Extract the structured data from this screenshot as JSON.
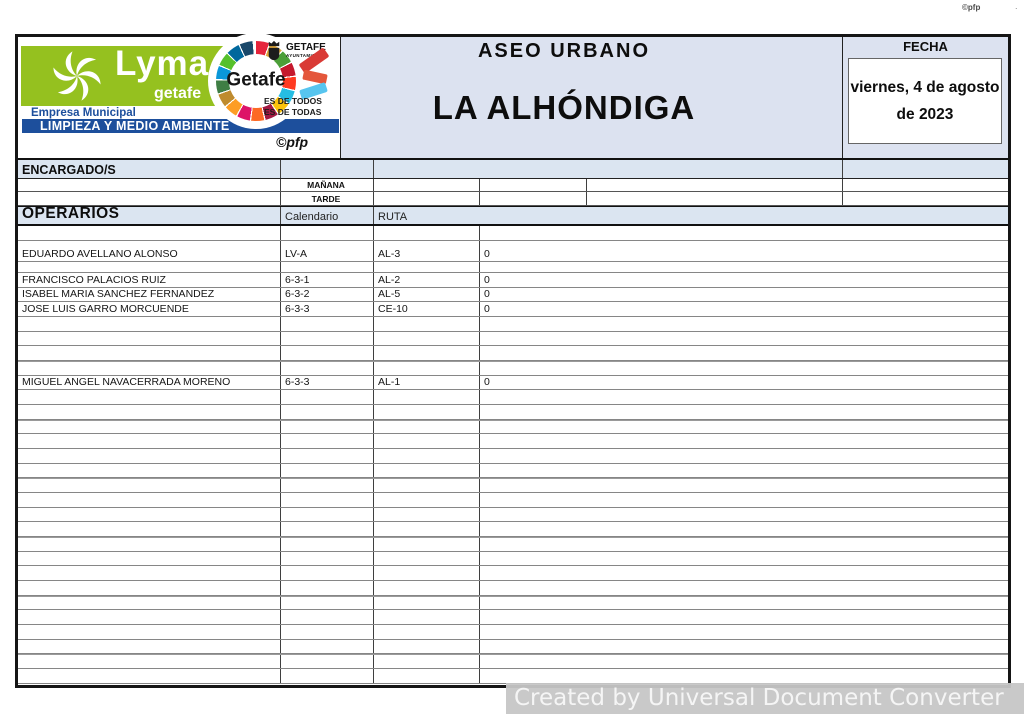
{
  "page": {
    "watermark_top": "©pfp",
    "converter_note": "Created by Universal Document Converter"
  },
  "colors": {
    "brand_green": "#95c11f",
    "brand_blue": "#1d4f9c",
    "header_bg": "#dce2f0",
    "section_bg": "#dbe5f1"
  },
  "branding": {
    "lyma": "Lyma",
    "lyma_sub": "getafe",
    "circle_word": "Getafe",
    "crest_title": "GETAFE",
    "crest_sub": "AYUNTAMIENTO",
    "slogan_line1": "ES DE TODOS",
    "slogan_line2": "ES DE TODAS",
    "empresa": "Empresa Municipal",
    "department": "LIMPIEZA Y MEDIO AMBIENTE",
    "copyright": "©pfp"
  },
  "header": {
    "service": "ASEO URBANO",
    "zone": "LA ALHÓNDIGA",
    "fecha_label": "FECHA",
    "fecha_value": "viernes, 4 de agosto de 2023"
  },
  "schedule": {
    "encargados_label": "ENCARGADO/S",
    "manana_label": "MAÑANA",
    "tarde_label": "TARDE",
    "operarios_label": "OPERARIOS",
    "calendario_label": "Calendario",
    "ruta_label": "RUTA",
    "rows": [
      {
        "name": "",
        "calendario": "",
        "ruta": "",
        "value": ""
      },
      {
        "name": "EDUARDO AVELLANO ALONSO",
        "calendario": "LV-A",
        "ruta": "AL-3",
        "value": "0"
      },
      {
        "name": "",
        "calendario": "",
        "ruta": "",
        "value": ""
      },
      {
        "name": "FRANCISCO PALACIOS RUIZ",
        "calendario": "6-3-1",
        "ruta": "AL-2",
        "value": "0"
      },
      {
        "name": "ISABEL MARIA SANCHEZ FERNANDEZ",
        "calendario": "6-3-2",
        "ruta": "AL-5",
        "value": "0"
      },
      {
        "name": "JOSE LUIS GARRO MORCUENDE",
        "calendario": "6-3-3",
        "ruta": "CE-10",
        "value": "0"
      },
      {
        "name": "",
        "calendario": "",
        "ruta": "",
        "value": ""
      },
      {
        "name": "",
        "calendario": "",
        "ruta": "",
        "value": ""
      },
      {
        "name": "",
        "calendario": "",
        "ruta": "",
        "value": ""
      },
      {
        "name": "",
        "calendario": "",
        "ruta": "",
        "value": ""
      },
      {
        "name": "MIGUEL ANGEL NAVACERRADA MORENO",
        "calendario": "6-3-3",
        "ruta": "AL-1",
        "value": "0"
      },
      {
        "name": "",
        "calendario": "",
        "ruta": "",
        "value": ""
      },
      {
        "name": "",
        "calendario": "",
        "ruta": "",
        "value": ""
      },
      {
        "name": "",
        "calendario": "",
        "ruta": "",
        "value": ""
      },
      {
        "name": "",
        "calendario": "",
        "ruta": "",
        "value": ""
      },
      {
        "name": "",
        "calendario": "",
        "ruta": "",
        "value": ""
      },
      {
        "name": "",
        "calendario": "",
        "ruta": "",
        "value": ""
      },
      {
        "name": "",
        "calendario": "",
        "ruta": "",
        "value": ""
      },
      {
        "name": "",
        "calendario": "",
        "ruta": "",
        "value": ""
      },
      {
        "name": "",
        "calendario": "",
        "ruta": "",
        "value": ""
      },
      {
        "name": "",
        "calendario": "",
        "ruta": "",
        "value": ""
      },
      {
        "name": "",
        "calendario": "",
        "ruta": "",
        "value": ""
      },
      {
        "name": "",
        "calendario": "",
        "ruta": "",
        "value": ""
      },
      {
        "name": "",
        "calendario": "",
        "ruta": "",
        "value": ""
      },
      {
        "name": "",
        "calendario": "",
        "ruta": "",
        "value": ""
      },
      {
        "name": "",
        "calendario": "",
        "ruta": "",
        "value": ""
      },
      {
        "name": "",
        "calendario": "",
        "ruta": "",
        "value": ""
      },
      {
        "name": "",
        "calendario": "",
        "ruta": "",
        "value": ""
      },
      {
        "name": "",
        "calendario": "",
        "ruta": "",
        "value": ""
      },
      {
        "name": "",
        "calendario": "",
        "ruta": "",
        "value": ""
      },
      {
        "name": "",
        "calendario": "",
        "ruta": "",
        "value": ""
      }
    ]
  }
}
